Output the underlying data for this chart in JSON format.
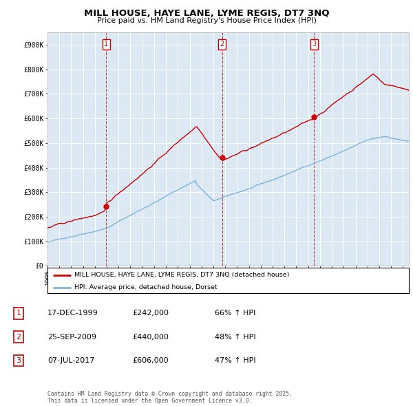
{
  "title": "MILL HOUSE, HAYE LANE, LYME REGIS, DT7 3NQ",
  "subtitle": "Price paid vs. HM Land Registry's House Price Index (HPI)",
  "bg_color": "#dce9f5",
  "red_line_color": "#cc0000",
  "blue_line_color": "#7eb4d8",
  "sale_prices": [
    242000,
    440000,
    606000
  ],
  "sale_labels": [
    "1",
    "2",
    "3"
  ],
  "legend_label_red": "MILL HOUSE, HAYE LANE, LYME REGIS, DT7 3NQ (detached house)",
  "legend_label_blue": "HPI: Average price, detached house, Dorset",
  "table_rows": [
    [
      "1",
      "17-DEC-1999",
      "£242,000",
      "66% ↑ HPI"
    ],
    [
      "2",
      "25-SEP-2009",
      "£440,000",
      "48% ↑ HPI"
    ],
    [
      "3",
      "07-JUL-2017",
      "£606,000",
      "47% ↑ HPI"
    ]
  ],
  "footnote": "Contains HM Land Registry data © Crown copyright and database right 2025.\nThis data is licensed under the Open Government Licence v3.0.",
  "ylim": [
    0,
    950000
  ],
  "yticks": [
    0,
    100000,
    200000,
    300000,
    400000,
    500000,
    600000,
    700000,
    800000,
    900000
  ],
  "ytick_labels": [
    "£0",
    "£100K",
    "£200K",
    "£300K",
    "£400K",
    "£500K",
    "£600K",
    "£700K",
    "£800K",
    "£900K"
  ],
  "xlim_start": 1995.0,
  "xlim_end": 2025.5,
  "sale_times": [
    1999.958,
    2009.729,
    2017.51
  ]
}
